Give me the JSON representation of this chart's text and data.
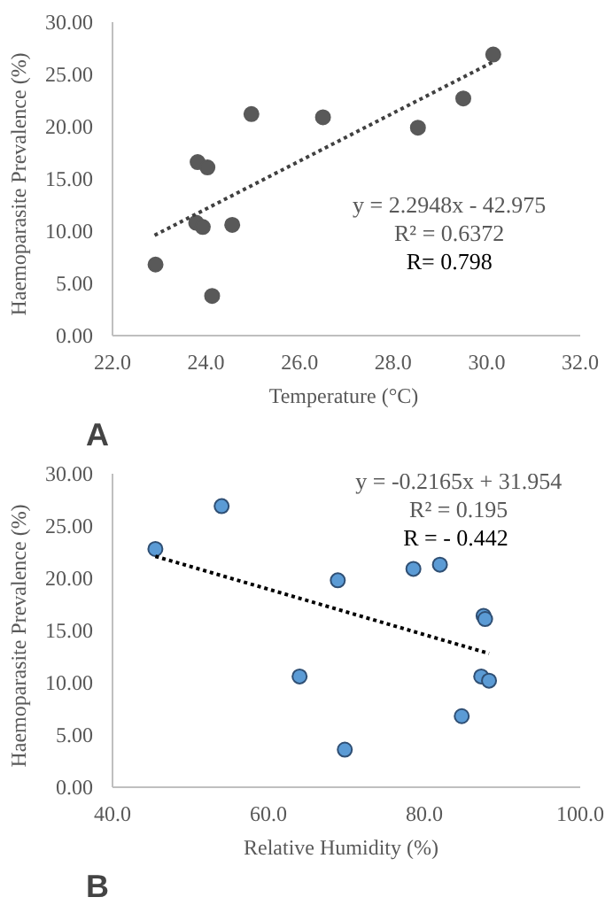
{
  "chart_data": [
    {
      "type": "scatter",
      "title": "A",
      "xlabel": "Temperature  (°C)",
      "ylabel": "Haemoparasite  Prevalence  (%)",
      "marker": "circle",
      "grid": false,
      "x": [
        22.92,
        23.82,
        24.03,
        23.79,
        23.93,
        24.13,
        24.56,
        24.97,
        26.5,
        28.53,
        29.5,
        30.14
      ],
      "series": [
        {
          "color": "#595959",
          "values": [
            6.8,
            16.6,
            16.1,
            10.8,
            10.4,
            3.8,
            10.6,
            21.2,
            20.9,
            19.9,
            22.7,
            26.9
          ]
        },
        {
          "type": "line",
          "line_style": "dotted",
          "marker": "none",
          "color": "#404040",
          "x": [
            22.9,
            30.14
          ],
          "values": [
            9.6,
            26.2
          ]
        }
      ],
      "xlim": [
        22,
        32
      ],
      "xticks": [
        {
          "value": 22,
          "label": "22.0"
        },
        {
          "value": 24,
          "label": "24.0"
        },
        {
          "value": 26,
          "label": "26.0"
        },
        {
          "value": 28,
          "label": "28.0"
        },
        {
          "value": 30,
          "label": "30.0"
        },
        {
          "value": 32,
          "label": "32.0"
        }
      ],
      "ylim": [
        0,
        30
      ],
      "yticks": [
        {
          "value": 0,
          "label": "0.00"
        },
        {
          "value": 5,
          "label": "5.00"
        },
        {
          "value": 10,
          "label": "10.00"
        },
        {
          "value": 15,
          "label": "15.00"
        },
        {
          "value": 20,
          "label": "20.00"
        },
        {
          "value": 25,
          "label": "25.00"
        },
        {
          "value": 30,
          "label": "30.00"
        }
      ],
      "annotations": [
        "y = 2.2948x - 42.975",
        "R² = 0.6372",
        "R= 0.798"
      ]
    },
    {
      "type": "scatter",
      "title": "B",
      "xlabel": "Relative  Humidity  (%)",
      "ylabel": "Haemoparasite  Prevalence  (%)",
      "marker": "circle",
      "grid": false,
      "x": [
        45.5,
        54.0,
        64.0,
        68.9,
        69.8,
        78.6,
        82.0,
        84.8,
        87.3,
        87.6,
        87.8,
        88.3
      ],
      "series": [
        {
          "color": "#5b9bd5",
          "values": [
            22.8,
            26.9,
            10.6,
            19.8,
            3.6,
            20.9,
            21.3,
            6.8,
            10.6,
            16.4,
            16.1,
            10.2
          ]
        },
        {
          "type": "line",
          "line_style": "dotted",
          "marker": "none",
          "color": "#000000",
          "x": [
            45.5,
            88.3
          ],
          "values": [
            22.1,
            12.8
          ]
        }
      ],
      "xlim": [
        40,
        100
      ],
      "xticks": [
        {
          "value": 40,
          "label": "40.0"
        },
        {
          "value": 60,
          "label": "60.0"
        },
        {
          "value": 80,
          "label": "80.0"
        },
        {
          "value": 100,
          "label": "100.0"
        }
      ],
      "ylim": [
        0,
        30
      ],
      "yticks": [
        {
          "value": 0,
          "label": "0.00"
        },
        {
          "value": 5,
          "label": "5.00"
        },
        {
          "value": 10,
          "label": "10.00"
        },
        {
          "value": 15,
          "label": "15.00"
        },
        {
          "value": 20,
          "label": "20.00"
        },
        {
          "value": 25,
          "label": "25.00"
        },
        {
          "value": 30,
          "label": "30.00"
        }
      ],
      "annotations": [
        "y = -0.2165x + 31.954",
        "R² = 0.195",
        "R =  - 0.442"
      ]
    }
  ]
}
